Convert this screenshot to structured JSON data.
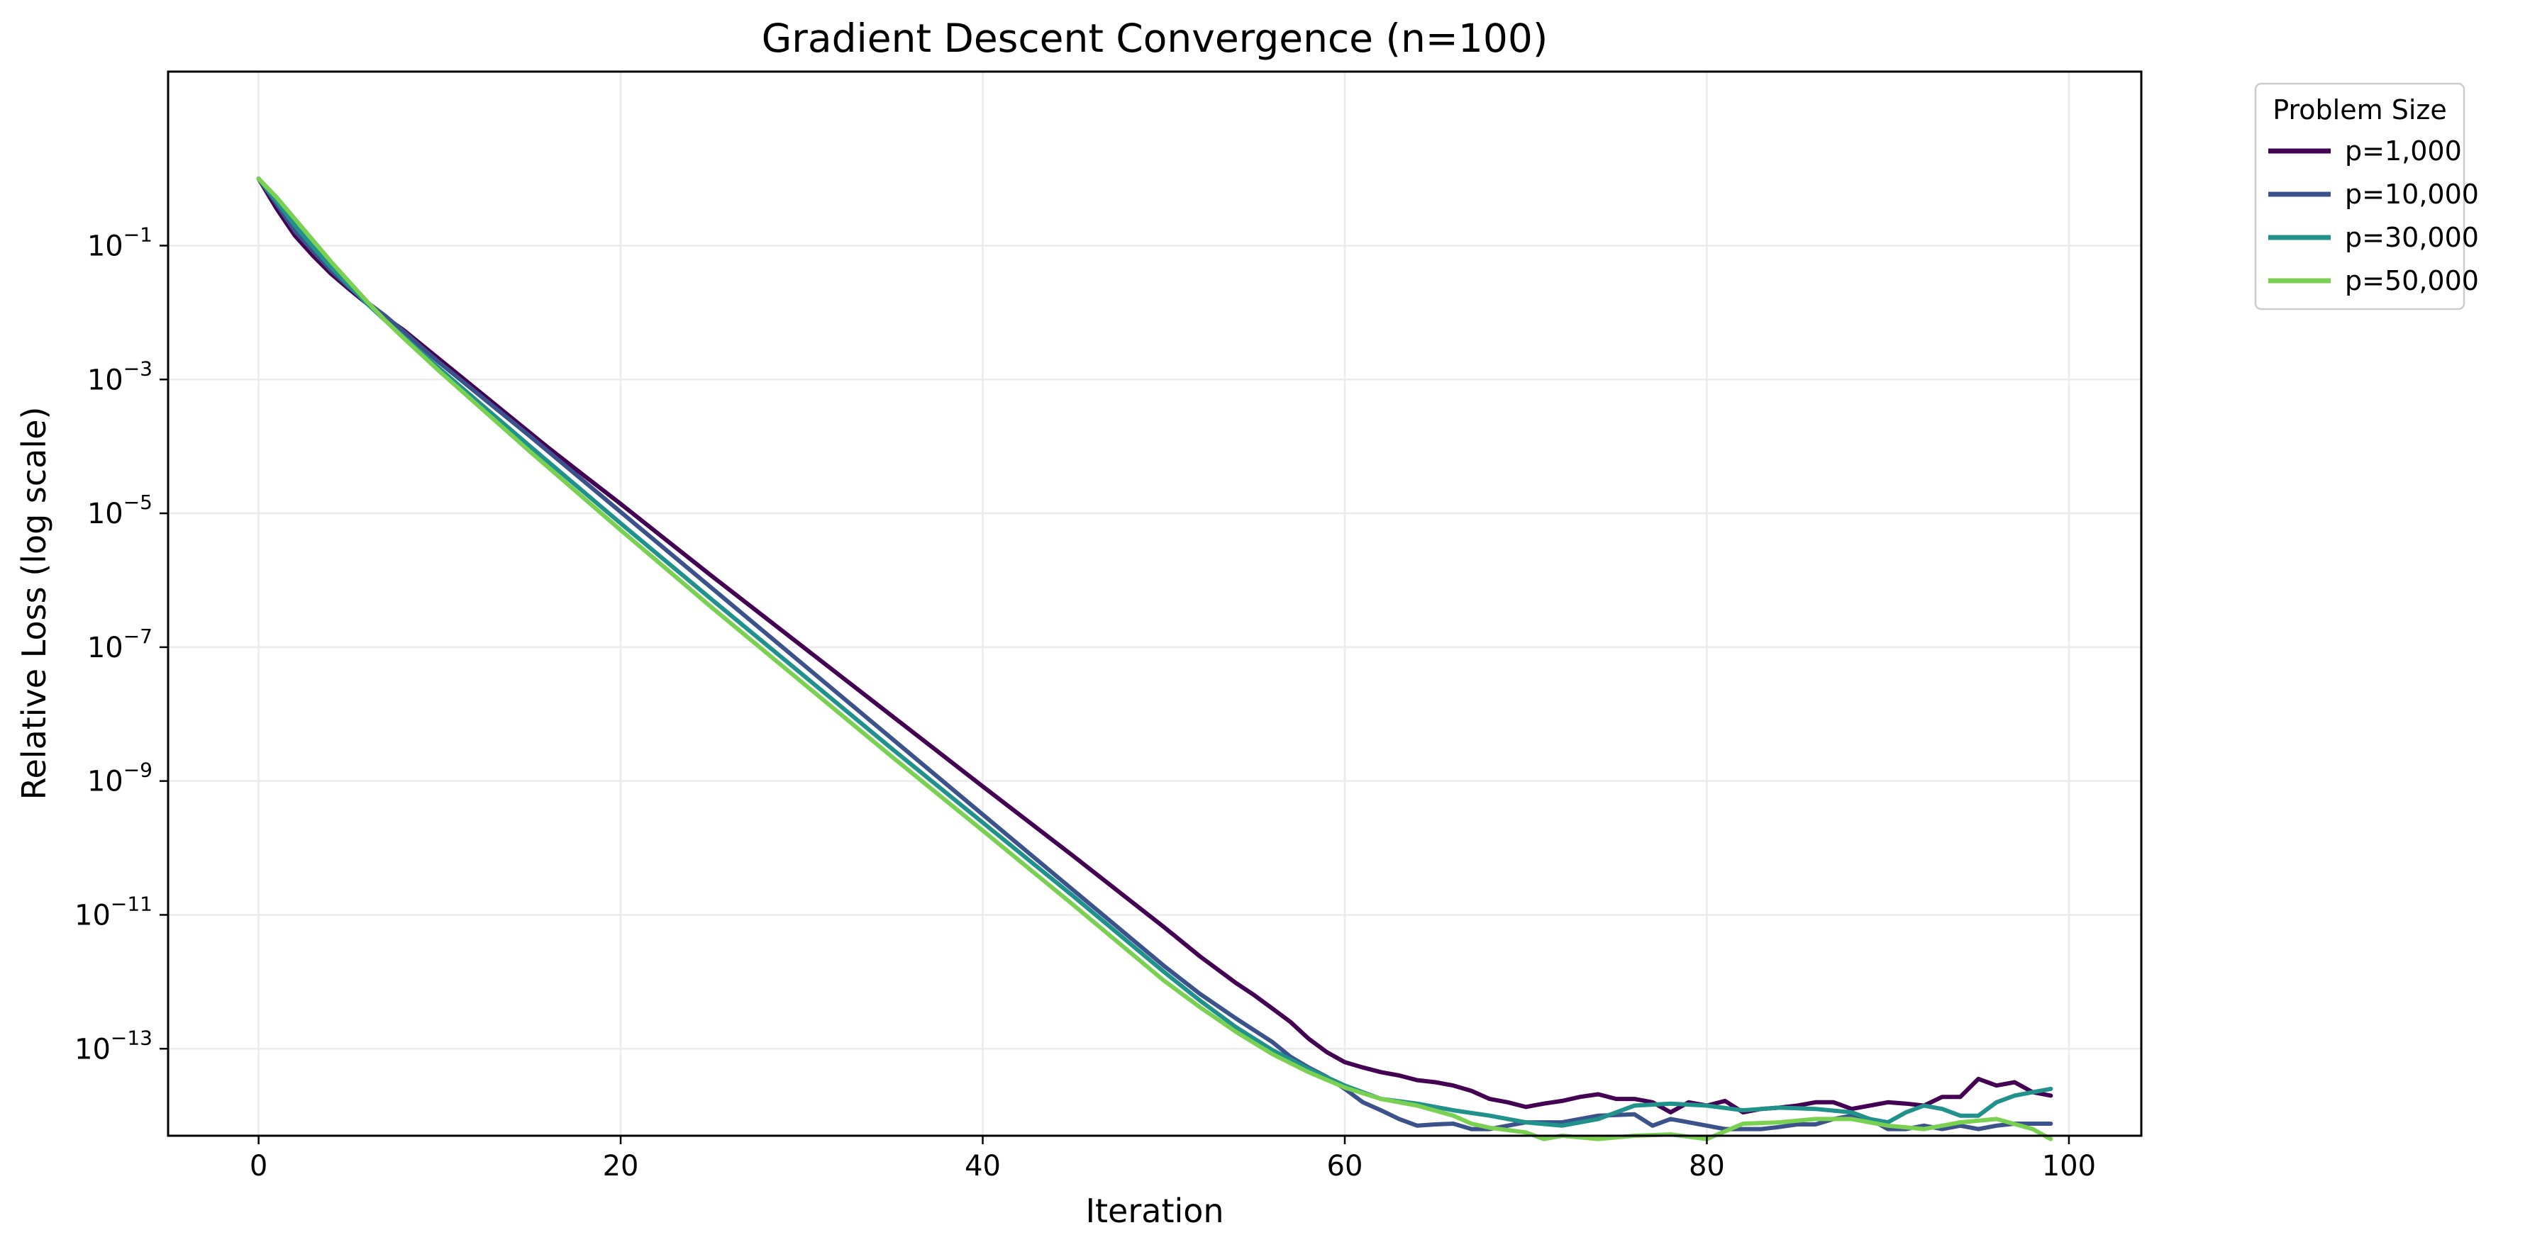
{
  "chart_data": {
    "type": "line",
    "title": "Gradient Descent Convergence (n=100)",
    "xlabel": "Iteration",
    "ylabel": "Relative Loss (log scale)",
    "xlim": [
      -5,
      104
    ],
    "ylim_log10": [
      -14.3,
      1.6
    ],
    "yscale": "log",
    "x_ticks": [
      0,
      20,
      40,
      60,
      80,
      100
    ],
    "y_ticks": [
      {
        "base": "10",
        "exp": "−1",
        "log10": -1
      },
      {
        "base": "10",
        "exp": "−3",
        "log10": -3
      },
      {
        "base": "10",
        "exp": "−5",
        "log10": -5
      },
      {
        "base": "10",
        "exp": "−7",
        "log10": -7
      },
      {
        "base": "10",
        "exp": "−9",
        "log10": -9
      },
      {
        "base": "10",
        "exp": "−11",
        "log10": -11
      },
      {
        "base": "10",
        "exp": "−13",
        "log10": -13
      }
    ],
    "grid": true,
    "legend": {
      "title": "Problem Size",
      "placement": "outside-top-right"
    },
    "series": [
      {
        "name": "p=1,000",
        "color": "#440154",
        "x": [
          0,
          1,
          2,
          3,
          4,
          5,
          6,
          7,
          8,
          9,
          10,
          12,
          14,
          16,
          18,
          20,
          25,
          30,
          35,
          40,
          45,
          50,
          52,
          54,
          55,
          56,
          57,
          58,
          59,
          60,
          61,
          62,
          63,
          64,
          65,
          66,
          67,
          68,
          69,
          70,
          71,
          72,
          73,
          74,
          75,
          76,
          77,
          78,
          79,
          80,
          81,
          82,
          83,
          84,
          85,
          86,
          87,
          88,
          89,
          90,
          91,
          92,
          93,
          94,
          95,
          96,
          97,
          98,
          99
        ],
        "log10": [
          0.0,
          -0.45,
          -0.85,
          -1.15,
          -1.42,
          -1.65,
          -1.87,
          -2.07,
          -2.26,
          -2.48,
          -2.7,
          -3.14,
          -3.58,
          -4.02,
          -4.44,
          -4.86,
          -5.93,
          -6.98,
          -8.03,
          -9.08,
          -10.12,
          -11.18,
          -11.62,
          -12.02,
          -12.2,
          -12.4,
          -12.6,
          -12.85,
          -13.05,
          -13.2,
          -13.28,
          -13.35,
          -13.4,
          -13.47,
          -13.5,
          -13.55,
          -13.63,
          -13.75,
          -13.8,
          -13.87,
          -13.82,
          -13.78,
          -13.72,
          -13.68,
          -13.75,
          -13.75,
          -13.8,
          -13.95,
          -13.8,
          -13.85,
          -13.78,
          -13.95,
          -13.9,
          -13.88,
          -13.85,
          -13.8,
          -13.8,
          -13.9,
          -13.85,
          -13.8,
          -13.82,
          -13.85,
          -13.72,
          -13.72,
          -13.45,
          -13.55,
          -13.5,
          -13.65,
          -13.7
        ]
      },
      {
        "name": "p=10,000",
        "color": "#3b528b",
        "x": [
          0,
          1,
          2,
          3,
          4,
          5,
          6,
          7,
          8,
          9,
          10,
          15,
          20,
          25,
          30,
          35,
          40,
          45,
          50,
          52,
          54,
          56,
          57,
          58,
          59,
          60,
          61,
          62,
          63,
          64,
          65,
          66,
          67,
          68,
          69,
          70,
          72,
          74,
          76,
          77,
          78,
          79,
          80,
          81,
          82,
          83,
          84,
          85,
          86,
          87,
          88,
          89,
          90,
          91,
          92,
          93,
          94,
          95,
          96,
          97,
          98,
          99
        ],
        "log10": [
          0.0,
          -0.38,
          -0.78,
          -1.08,
          -1.37,
          -1.62,
          -1.85,
          -2.05,
          -2.28,
          -2.52,
          -2.75,
          -3.85,
          -4.98,
          -6.11,
          -7.24,
          -8.37,
          -9.5,
          -10.63,
          -11.76,
          -12.18,
          -12.55,
          -12.9,
          -13.12,
          -13.28,
          -13.42,
          -13.6,
          -13.8,
          -13.92,
          -14.05,
          -14.15,
          -14.13,
          -14.12,
          -14.2,
          -14.2,
          -14.15,
          -14.1,
          -14.1,
          -14.0,
          -13.98,
          -14.15,
          -14.05,
          -14.1,
          -14.15,
          -14.2,
          -14.2,
          -14.2,
          -14.17,
          -14.13,
          -14.13,
          -14.05,
          -14.0,
          -14.05,
          -14.2,
          -14.2,
          -14.15,
          -14.2,
          -14.15,
          -14.2,
          -14.15,
          -14.12,
          -14.12,
          -14.12
        ]
      },
      {
        "name": "p=30,000",
        "color": "#21918c",
        "x": [
          0,
          1,
          2,
          3,
          4,
          5,
          6,
          7,
          8,
          9,
          10,
          15,
          20,
          25,
          30,
          35,
          40,
          45,
          50,
          52,
          54,
          56,
          58,
          60,
          62,
          64,
          66,
          68,
          70,
          72,
          74,
          76,
          78,
          80,
          82,
          84,
          86,
          88,
          89,
          90,
          91,
          92,
          93,
          94,
          95,
          96,
          97,
          98,
          99
        ],
        "log10": [
          0.0,
          -0.34,
          -0.7,
          -1.02,
          -1.32,
          -1.6,
          -1.87,
          -2.12,
          -2.36,
          -2.6,
          -2.84,
          -4.0,
          -5.15,
          -6.28,
          -7.4,
          -8.52,
          -9.62,
          -10.72,
          -11.85,
          -12.28,
          -12.68,
          -13.02,
          -13.3,
          -13.55,
          -13.75,
          -13.82,
          -13.92,
          -14.0,
          -14.1,
          -14.15,
          -14.05,
          -13.85,
          -13.82,
          -13.85,
          -13.92,
          -13.88,
          -13.9,
          -13.95,
          -14.05,
          -14.1,
          -13.95,
          -13.85,
          -13.9,
          -14.0,
          -14.0,
          -13.8,
          -13.7,
          -13.65,
          -13.6
        ]
      },
      {
        "name": "p=50,000",
        "color": "#7ad151",
        "x": [
          0,
          1,
          2,
          3,
          4,
          5,
          6,
          7,
          8,
          9,
          10,
          15,
          20,
          25,
          30,
          35,
          40,
          45,
          50,
          52,
          54,
          56,
          58,
          60,
          62,
          64,
          66,
          67,
          68,
          70,
          71,
          72,
          74,
          76,
          78,
          80,
          82,
          84,
          86,
          88,
          90,
          92,
          94,
          96,
          98,
          99
        ],
        "log10": [
          0.0,
          -0.28,
          -0.6,
          -0.92,
          -1.24,
          -1.54,
          -1.84,
          -2.12,
          -2.38,
          -2.63,
          -2.88,
          -4.08,
          -5.25,
          -6.4,
          -7.52,
          -8.64,
          -9.74,
          -10.85,
          -11.98,
          -12.38,
          -12.75,
          -13.08,
          -13.35,
          -13.58,
          -13.75,
          -13.85,
          -14.0,
          -14.12,
          -14.18,
          -14.25,
          -14.35,
          -14.3,
          -14.35,
          -14.3,
          -14.28,
          -14.35,
          -14.12,
          -14.1,
          -14.05,
          -14.05,
          -14.15,
          -14.2,
          -14.1,
          -14.05,
          -14.2,
          -14.35
        ]
      }
    ]
  }
}
